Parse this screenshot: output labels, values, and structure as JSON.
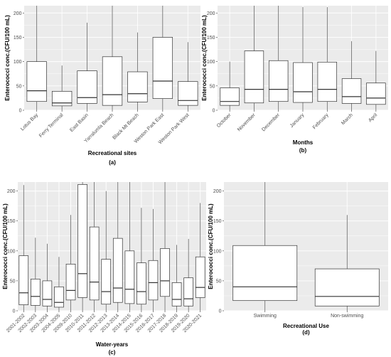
{
  "chart_data": [
    {
      "type": "boxplot",
      "panel_label": "(a)",
      "xlabel": "Recreational sites",
      "ylabel": "Enterococci conc.(CFU/100 mL)",
      "ylim": [
        0,
        215
      ],
      "yticks": [
        0,
        50,
        100,
        150,
        200
      ],
      "tick_angle": -45,
      "grid": true,
      "categories": [
        "Lotus Bay",
        "Ferry Terminal",
        "East Basin",
        "Yarralumla Beach",
        "Black Mt Beach",
        "Weston Park East",
        "Weston Park West"
      ],
      "boxes": [
        {
          "min": 0,
          "q1": 18,
          "median": 40,
          "q3": 100,
          "max": 215
        },
        {
          "min": 0,
          "q1": 9,
          "median": 15,
          "q3": 39,
          "max": 92
        },
        {
          "min": 0,
          "q1": 14,
          "median": 26,
          "q3": 81,
          "max": 180
        },
        {
          "min": 0,
          "q1": 10,
          "median": 32,
          "q3": 110,
          "max": 215
        },
        {
          "min": 0,
          "q1": 17,
          "median": 34,
          "q3": 79,
          "max": 160
        },
        {
          "min": 0,
          "q1": 24,
          "median": 60,
          "q3": 150,
          "max": 215
        },
        {
          "min": 0,
          "q1": 10,
          "median": 20,
          "q3": 59,
          "max": 140
        }
      ]
    },
    {
      "type": "boxplot",
      "panel_label": "(b)",
      "xlabel": "Months",
      "ylabel": "Enterococci conc.(CFU/100 mL)",
      "ylim": [
        0,
        215
      ],
      "yticks": [
        0,
        50,
        100,
        150,
        200
      ],
      "tick_angle": -45,
      "grid": true,
      "categories": [
        "October",
        "November",
        "December",
        "January",
        "February",
        "March",
        "April"
      ],
      "boxes": [
        {
          "min": 0,
          "q1": 10,
          "median": 18,
          "q3": 46,
          "max": 100
        },
        {
          "min": 0,
          "q1": 15,
          "median": 43,
          "q3": 122,
          "max": 215
        },
        {
          "min": 0,
          "q1": 18,
          "median": 43,
          "q3": 102,
          "max": 215
        },
        {
          "min": 0,
          "q1": 16,
          "median": 38,
          "q3": 98,
          "max": 212
        },
        {
          "min": 0,
          "q1": 18,
          "median": 43,
          "q3": 99,
          "max": 212
        },
        {
          "min": 0,
          "q1": 14,
          "median": 28,
          "q3": 65,
          "max": 142
        },
        {
          "min": 0,
          "q1": 12,
          "median": 25,
          "q3": 56,
          "max": 122
        }
      ]
    },
    {
      "type": "boxplot",
      "panel_label": "(c)",
      "xlabel": "Water-years",
      "ylabel": "Enterococci conc.(CFU/100 mL)",
      "ylim": [
        0,
        215
      ],
      "yticks": [
        0,
        50,
        100,
        150,
        200
      ],
      "tick_angle": -45,
      "grid": true,
      "categories": [
        "2001-2002",
        "2002-2003",
        "2003-2004",
        "2004-2005",
        "2009-2010",
        "2010-2011",
        "2011-2012",
        "2012-2013",
        "2013-2014",
        "2014-2015",
        "2015-2016",
        "2016-2017",
        "2017-2018",
        "2018-2019",
        "2019-2020",
        "2020-2021"
      ],
      "boxes": [
        {
          "min": 0,
          "q1": 10,
          "median": 30,
          "q3": 92,
          "max": 210
        },
        {
          "min": 0,
          "q1": 9,
          "median": 24,
          "q3": 53,
          "max": 122
        },
        {
          "min": 0,
          "q1": 8,
          "median": 19,
          "q3": 50,
          "max": 112
        },
        {
          "min": 0,
          "q1": 6,
          "median": 14,
          "q3": 40,
          "max": 90
        },
        {
          "min": 0,
          "q1": 18,
          "median": 34,
          "q3": 78,
          "max": 160
        },
        {
          "min": 0,
          "q1": 22,
          "median": 62,
          "q3": 211,
          "max": 215
        },
        {
          "min": 0,
          "q1": 18,
          "median": 48,
          "q3": 140,
          "max": 215
        },
        {
          "min": 0,
          "q1": 11,
          "median": 32,
          "q3": 86,
          "max": 200
        },
        {
          "min": 0,
          "q1": 14,
          "median": 38,
          "q3": 121,
          "max": 215
        },
        {
          "min": 0,
          "q1": 12,
          "median": 36,
          "q3": 100,
          "max": 215
        },
        {
          "min": 0,
          "q1": 11,
          "median": 32,
          "q3": 80,
          "max": 172
        },
        {
          "min": 0,
          "q1": 18,
          "median": 47,
          "q3": 84,
          "max": 170
        },
        {
          "min": 0,
          "q1": 24,
          "median": 50,
          "q3": 104,
          "max": 215
        },
        {
          "min": 0,
          "q1": 8,
          "median": 19,
          "q3": 47,
          "max": 110
        },
        {
          "min": 0,
          "q1": 8,
          "median": 20,
          "q3": 55,
          "max": 120
        },
        {
          "min": 0,
          "q1": 22,
          "median": 39,
          "q3": 90,
          "max": 180
        }
      ]
    },
    {
      "type": "boxplot",
      "panel_label": "(d)",
      "xlabel": "Recreational Use",
      "ylabel": "Enterococci conc.(CFU/100 mL)",
      "ylim": [
        0,
        215
      ],
      "yticks": [
        0,
        50,
        100,
        150,
        200
      ],
      "tick_angle": 0,
      "grid": true,
      "categories": [
        "Swimming",
        "Non-swimming"
      ],
      "boxes": [
        {
          "min": 0,
          "q1": 17,
          "median": 40,
          "q3": 109,
          "max": 215
        },
        {
          "min": 0,
          "q1": 8,
          "median": 24,
          "q3": 70,
          "max": 160
        }
      ]
    }
  ]
}
